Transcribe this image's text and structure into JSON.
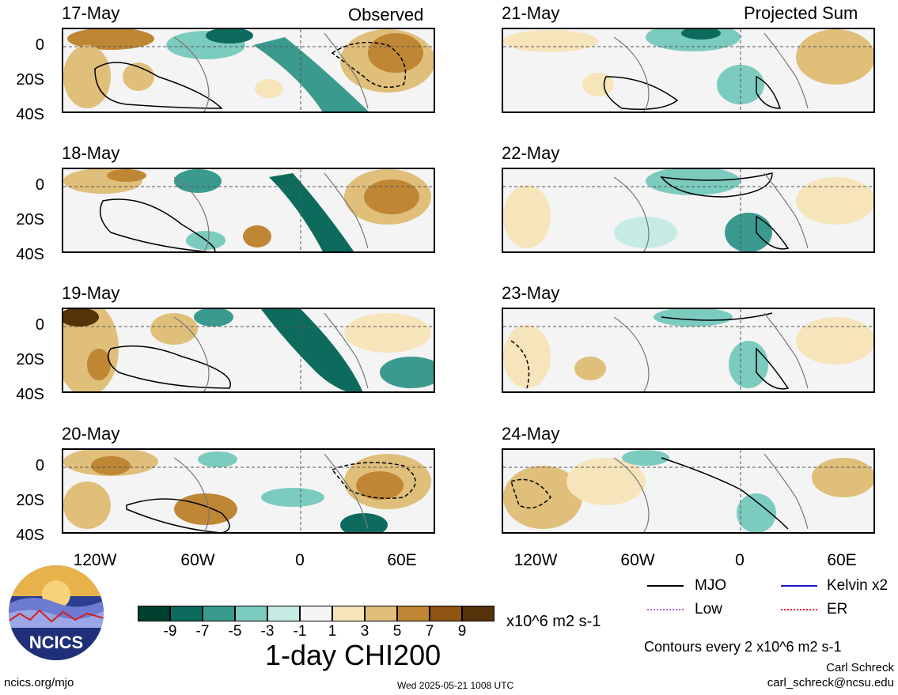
{
  "header": {
    "left_label": "Observed",
    "right_label": "Projected Sum"
  },
  "panels": {
    "observed": [
      "17-May",
      "18-May",
      "19-May",
      "20-May"
    ],
    "projected": [
      "21-May",
      "22-May",
      "23-May",
      "24-May"
    ]
  },
  "axes": {
    "lat_ticks": [
      "0",
      "20S",
      "40S"
    ],
    "lon_ticks": [
      "120W",
      "60W",
      "0",
      "60E"
    ]
  },
  "legend": {
    "mjo": "MJO",
    "kelvin": "Kelvin x2",
    "low": "Low",
    "er": "ER",
    "colors": {
      "mjo": "#000000",
      "kelvin": "#1a1acc",
      "low": "#b060e0",
      "er": "#dd2222"
    }
  },
  "colorbar": {
    "title": "1-day CHI200",
    "units": "x10^6 m2 s-1",
    "ticks": [
      "-9",
      "-7",
      "-5",
      "-3",
      "-1",
      "1",
      "3",
      "5",
      "7",
      "9"
    ],
    "colors": [
      "#00402f",
      "#0d6b5e",
      "#3a9a8e",
      "#7ccbbf",
      "#c6ebe4",
      "#f4f4f4",
      "#f6e4bb",
      "#dfbf7a",
      "#bf8634",
      "#8e5414",
      "#553208"
    ]
  },
  "footer": {
    "contours_note": "Contours every 2 x10^6 m2 s-1",
    "author": "Carl Schreck",
    "email": "carl_schreck@ncsu.edu",
    "url": "ncics.org/mjo",
    "timestamp": "Wed 2025-05-21 1008 UTC",
    "logo_text": "NCICS"
  }
}
